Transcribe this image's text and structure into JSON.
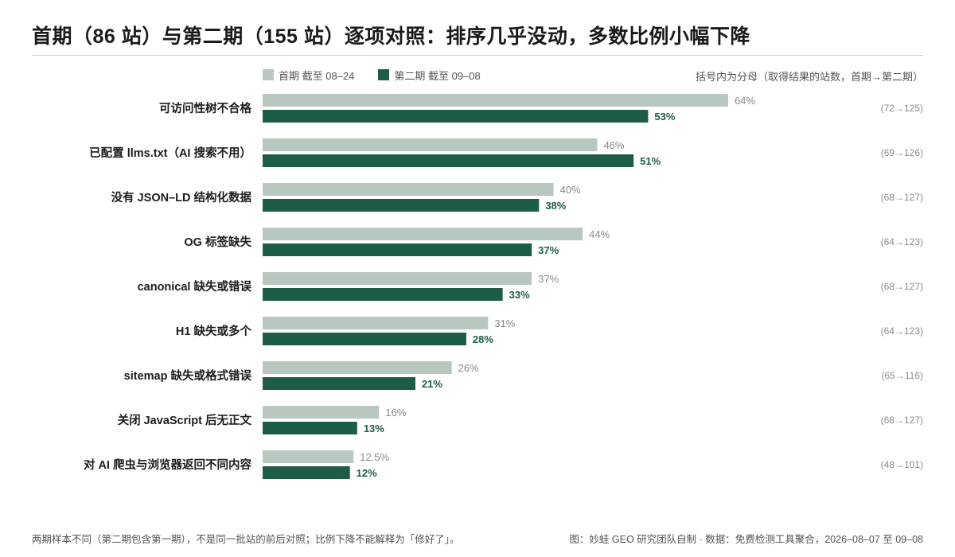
{
  "title": "首期（86 站）与第二期（155 站）逐项对照：排序几乎没动，多数比例小幅下降",
  "legend": {
    "series1_label": "首期 截至 08–24",
    "series2_label": "第二期 截至 09–08"
  },
  "note": "括号内为分母（取得结果的站数，首期→第二期）",
  "footer": {
    "left": "两期样本不同（第二期包含第一期），不是同一批站的前后对照；比例下降不能解释为「修好了」。",
    "right": "图：妙蛙 GEO 研究团队自制 · 数据：免费检测工具聚合，2026–08–07 至 09–08"
  },
  "colors": {
    "series1": "#b9c8be",
    "series2": "#1d5c45",
    "series1_label": "#8a8a8a",
    "series2_label": "#1d5c45",
    "denominator": "#8a8a8a"
  },
  "chart_data": {
    "type": "bar",
    "orientation": "horizontal",
    "categories": [
      "可访问性树不合格",
      "已配置 llms.txt（AI 搜索不用）",
      "没有 JSON–LD 结构化数据",
      "OG 标签缺失",
      "canonical 缺失或错误",
      "H1 缺失或多个",
      "sitemap 缺失或格式错误",
      "关闭 JavaScript 后无正文",
      "对 AI 爬虫与浏览器返回不同内容"
    ],
    "series": [
      {
        "name": "首期 截至 08–24",
        "values": [
          64,
          46,
          40,
          44,
          37,
          31,
          26,
          16,
          12.5
        ],
        "labels": [
          "64%",
          "46%",
          "40%",
          "44%",
          "37%",
          "31%",
          "26%",
          "16%",
          "12.5%"
        ]
      },
      {
        "name": "第二期 截至 09–08",
        "values": [
          53,
          51,
          38,
          37,
          33,
          28,
          21,
          13,
          12
        ],
        "labels": [
          "53%",
          "51%",
          "38%",
          "37%",
          "33%",
          "28%",
          "21%",
          "13%",
          "12%"
        ]
      }
    ],
    "denominators": [
      "(72→125)",
      "(69→126)",
      "(68→127)",
      "(64→123)",
      "(68→127)",
      "(64→123)",
      "(65→116)",
      "(68→127)",
      "(48→101)"
    ],
    "unit": "%",
    "xlim": [
      0,
      100
    ],
    "grid": false,
    "legend_position": "top-left"
  }
}
